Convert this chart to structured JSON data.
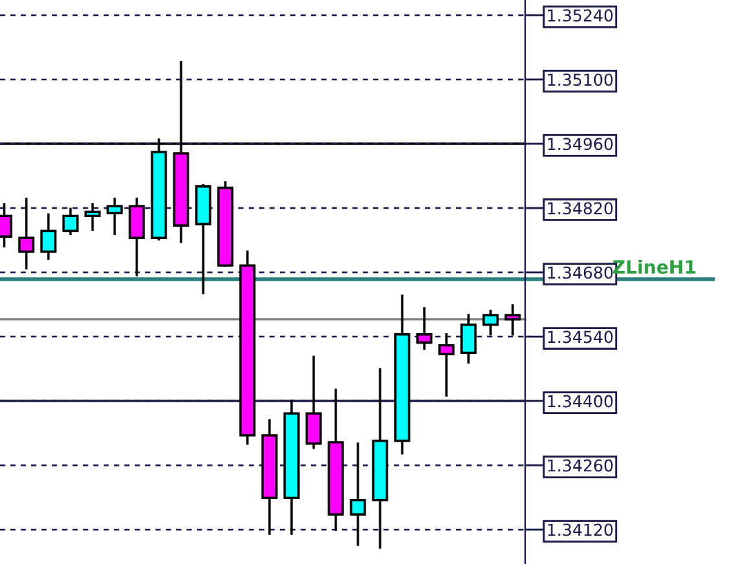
{
  "chart_data": {
    "type": "candlestick",
    "categories": [
      null,
      null,
      null,
      null,
      null,
      null,
      null,
      null,
      null,
      null,
      null,
      null,
      null,
      null,
      null,
      null,
      null,
      null,
      null,
      null,
      null,
      null,
      null,
      null
    ],
    "ohlc": [
      [
        1.34803,
        1.34828,
        1.34737,
        1.34758
      ],
      [
        1.34755,
        1.3484,
        1.34689,
        1.34725
      ],
      [
        1.34725,
        1.34806,
        1.3471,
        1.3477
      ],
      [
        1.3477,
        1.34818,
        1.34764,
        1.34803
      ],
      [
        1.34803,
        1.34828,
        1.34773,
        1.34812
      ],
      [
        1.34809,
        1.3484,
        1.34764,
        1.34824
      ],
      [
        1.34824,
        1.3484,
        1.34674,
        1.34755
      ],
      [
        1.34755,
        1.34969,
        1.34752,
        1.34942
      ],
      [
        1.34939,
        1.35138,
        1.34746,
        1.34782
      ],
      [
        1.34785,
        1.3487,
        1.34635,
        1.34867
      ],
      [
        1.34864,
        1.34876,
        1.34695,
        1.34695
      ],
      [
        1.34695,
        1.34725,
        1.34307,
        1.34325
      ],
      [
        1.34325,
        1.34358,
        1.34111,
        1.34189
      ],
      [
        1.34189,
        1.344,
        1.34111,
        1.34373
      ],
      [
        1.34373,
        1.34496,
        1.34298,
        1.34307
      ],
      [
        1.3431,
        1.34424,
        1.3412,
        1.34153
      ],
      [
        1.34153,
        1.34307,
        1.34087,
        1.34184
      ],
      [
        1.34184,
        1.34469,
        1.34081,
        1.34313
      ],
      [
        1.34313,
        1.34629,
        1.34286,
        1.34545
      ],
      [
        1.34545,
        1.34602,
        1.34514,
        1.34527
      ],
      [
        1.34521,
        1.34545,
        1.34412,
        1.34502
      ],
      [
        1.34505,
        1.34587,
        1.34484,
        1.34566
      ],
      [
        1.34566,
        1.34596,
        1.34545,
        1.34587
      ],
      [
        1.34587,
        1.34608,
        1.34545,
        1.34578
      ]
    ],
    "colors": [
      "#ff00ff",
      "#ff00ff",
      "#00ffff",
      "#00ffff",
      "#00ffff",
      "#00ffff",
      "#ff00ff",
      "#00ffff",
      "#ff00ff",
      "#00ffff",
      "#ff00ff",
      "#ff00ff",
      "#ff00ff",
      "#00ffff",
      "#ff00ff",
      "#ff00ff",
      "#00ffff",
      "#00ffff",
      "#00ffff",
      "#ff00ff",
      "#ff00ff",
      "#00ffff",
      "#00ffff",
      "#ff00ff"
    ],
    "ylim": [
      1.34045,
      1.35273
    ],
    "yticks": [
      {
        "value": 1.3412,
        "label": "1.34120"
      },
      {
        "value": 1.3426,
        "label": "1.34260"
      },
      {
        "value": 1.344,
        "label": "1.34400"
      },
      {
        "value": 1.3454,
        "label": "1.34540"
      },
      {
        "value": 1.3468,
        "label": "1.34680"
      },
      {
        "value": 1.3482,
        "label": "1.34820"
      },
      {
        "value": 1.3496,
        "label": "1.34960"
      },
      {
        "value": 1.351,
        "label": "1.35100"
      },
      {
        "value": 1.3524,
        "label": "1.35240"
      }
    ],
    "grid": "y",
    "tick_labels": "y",
    "ref_lines": [
      {
        "axis": "y",
        "value": 1.3496,
        "color": "#000000",
        "line_style": "solid"
      },
      {
        "axis": "y",
        "value": 1.344,
        "color": "#1c1c4c",
        "line_style": "solid"
      },
      {
        "axis": "y",
        "value": 1.34665,
        "label": "ZLineH1",
        "color": "#2a8080",
        "line_style": "solid"
      },
      {
        "axis": "y",
        "value": 1.34578,
        "color": "#808080",
        "line_style": "solid"
      }
    ]
  }
}
